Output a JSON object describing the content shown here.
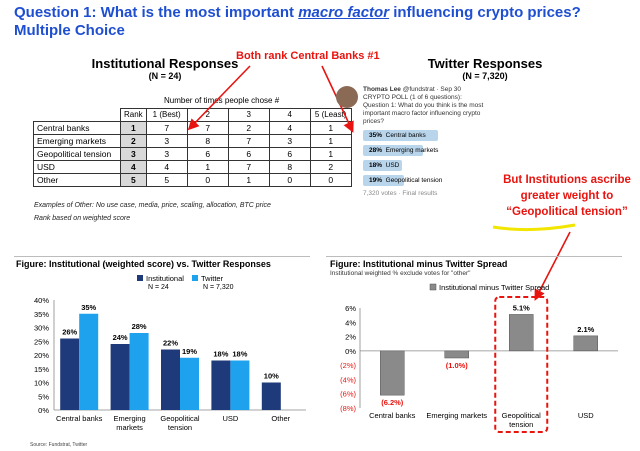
{
  "heading": {
    "prefix": "Question 1: What is the most important ",
    "emphasis": "macro factor",
    "suffix": " influencing crypto prices? Multiple Choice"
  },
  "institutional": {
    "title": "Institutional Responses",
    "n": "(N = 24)",
    "times_label": "Number of times people chose #",
    "columns": [
      "Rank",
      "1 (Best)",
      "2",
      "3",
      "4",
      "5 (Least)"
    ],
    "rows": [
      {
        "label": "Central banks",
        "rank": "1",
        "counts": [
          "7",
          "7",
          "2",
          "4",
          "1"
        ]
      },
      {
        "label": "Emerging markets",
        "rank": "2",
        "counts": [
          "3",
          "8",
          "7",
          "3",
          "1"
        ]
      },
      {
        "label": "Geopolitical tension",
        "rank": "3",
        "counts": [
          "3",
          "6",
          "6",
          "6",
          "1"
        ]
      },
      {
        "label": "USD",
        "rank": "4",
        "counts": [
          "4",
          "1",
          "7",
          "8",
          "2"
        ]
      },
      {
        "label": "Other",
        "rank": "5",
        "counts": [
          "5",
          "0",
          "1",
          "0",
          "0"
        ]
      }
    ],
    "note1": "Examples of Other: No use case, media, price, scaling, allocation, BTC price",
    "note2": "Rank based on weighted score"
  },
  "callout_top": "Both rank Central Banks #1",
  "twitter": {
    "title": "Twitter Responses",
    "n": "(N = 7,320)",
    "author": "Thomas Lee",
    "handle": "@fundstrat · Sep 30",
    "poll_line": "CRYPTO POLL (1 of 6 questions):",
    "question": "Question 1: What do you think is the most important macro factor influencing crypto prices?",
    "options": [
      {
        "pct": "35%",
        "label": "Central banks",
        "value": 35
      },
      {
        "pct": "28%",
        "label": "Emerging markets",
        "value": 28
      },
      {
        "pct": "18%",
        "label": "USD",
        "value": 18
      },
      {
        "pct": "19%",
        "label": "Geopolitical tension",
        "value": 19
      }
    ],
    "votes": "7,320 votes · Final results"
  },
  "callout_right": {
    "line1": "But Institutions ascribe",
    "line2": "greater weight to",
    "line3": "“Geopolitical tension”"
  },
  "figure1": {
    "title": "Figure: Institutional (weighted score) vs. Twitter Responses",
    "source": "Source: Fundstrat, Twitter"
  },
  "figure2": {
    "title": "Figure: Institutional minus Twitter Spread",
    "subtitle": "Institutional weighted % exclude votes for \"other\""
  },
  "colors": {
    "heading": "#1f4fd1",
    "institutional": "#1f3a7a",
    "twitter": "#1fa2ee",
    "spread": "#8a8a8a",
    "red": "#e8140f"
  },
  "chart_data": [
    {
      "type": "bar",
      "title": "Figure: Institutional (weighted score) vs. Twitter Responses",
      "categories": [
        "Central banks",
        "Emerging markets",
        "Geopolitical tension",
        "USD",
        "Other"
      ],
      "category_lines": [
        [
          "Central banks"
        ],
        [
          "Emerging",
          "markets"
        ],
        [
          "Geopolitical",
          "tension"
        ],
        [
          "USD"
        ],
        [
          "Other"
        ]
      ],
      "series": [
        {
          "name": "Institutional",
          "legend_sub": "N = 24",
          "values": [
            26,
            24,
            22,
            18,
            10
          ],
          "labels": [
            "26%",
            "24%",
            "22%",
            "18%",
            "10%"
          ]
        },
        {
          "name": "Twitter",
          "legend_sub": "N = 7,320",
          "values": [
            35,
            28,
            19,
            18,
            null
          ],
          "labels": [
            "35%",
            "28%",
            "19%",
            "18%",
            ""
          ]
        }
      ],
      "ylim": [
        0,
        40
      ],
      "yticks": [
        "0%",
        "5%",
        "10%",
        "15%",
        "20%",
        "25%",
        "30%",
        "35%",
        "40%"
      ],
      "grid": false,
      "legend": "top-center"
    },
    {
      "type": "bar",
      "title": "Figure: Institutional minus Twitter Spread",
      "categories": [
        "Central banks",
        "Emerging markets",
        "Geopolitical tension",
        "USD"
      ],
      "category_lines": [
        [
          "Central banks"
        ],
        [
          "Emerging markets"
        ],
        [
          "Geopolitical",
          "tension"
        ],
        [
          "USD"
        ]
      ],
      "series": [
        {
          "name": "Institutional minus Twitter Spread",
          "values": [
            -6.2,
            -1.0,
            5.1,
            2.1
          ],
          "labels": [
            "(6.2%)",
            "(1.0%)",
            "5.1%",
            "2.1%"
          ]
        }
      ],
      "ylim": [
        -8,
        6
      ],
      "yticks": [
        "(8%)",
        "(6%)",
        "(4%)",
        "(2%)",
        "0%",
        "2%",
        "4%",
        "6%"
      ],
      "grid": false,
      "legend": "top-center",
      "highlight": "Geopolitical tension"
    }
  ]
}
